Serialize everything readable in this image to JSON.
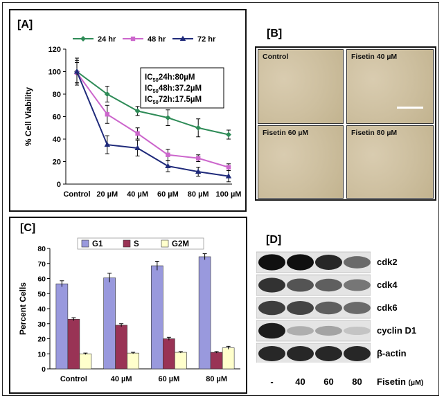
{
  "panel_labels": {
    "a": "[A]",
    "b": "[B]",
    "c": "[C]",
    "d": "[D]"
  },
  "chart_data": [
    {
      "type": "line",
      "title": "",
      "ylabel": "% Cell Viability",
      "xlabel": "",
      "categories": [
        "Control",
        "20 µM",
        "40 µM",
        "60 µM",
        "80 µM",
        "100 µM"
      ],
      "ylim": [
        0,
        120
      ],
      "yticks": [
        "0",
        "20",
        "40",
        "60",
        "80",
        "100",
        "120"
      ],
      "legend_position": "top",
      "series": [
        {
          "name": "24 hr",
          "color": "#2e8b57",
          "marker": "diamond",
          "values": [
            100,
            80,
            65,
            59,
            50,
            44
          ],
          "errors": [
            10,
            7,
            4,
            7,
            8,
            4
          ]
        },
        {
          "name": "48 hr",
          "color": "#cc66cc",
          "marker": "square",
          "values": [
            99,
            62,
            45,
            26,
            23,
            15
          ],
          "errors": [
            9,
            8,
            5,
            5,
            3,
            3
          ]
        },
        {
          "name": "72 hr",
          "color": "#1f2a7a",
          "marker": "triangle",
          "values": [
            100,
            35,
            32,
            16,
            11,
            7
          ],
          "errors": [
            12,
            8,
            7,
            5,
            4,
            5
          ]
        }
      ],
      "annotation_box": {
        "lines": [
          {
            "main": "IC",
            "sub": "50",
            "rest": "24h:80µM"
          },
          {
            "main": "IC",
            "sub": "50",
            "rest": "48h:37.2µM"
          },
          {
            "main": "IC",
            "sub": "50",
            "rest": "72h:17.5µM"
          }
        ]
      }
    },
    {
      "type": "bar",
      "title": "",
      "ylabel": "Percent Cells",
      "xlabel": "",
      "categories": [
        "Control",
        "40 µM",
        "60 µM",
        "80 µM"
      ],
      "ylim": [
        0,
        80
      ],
      "yticks": [
        "0",
        "10",
        "20",
        "30",
        "40",
        "50",
        "60",
        "70",
        "80"
      ],
      "legend_position": "top",
      "series": [
        {
          "name": "G1",
          "color": "#9999dd",
          "values": [
            56.5,
            60.5,
            68.5,
            74.5
          ],
          "errors": [
            2,
            3,
            3,
            2
          ]
        },
        {
          "name": "S",
          "color": "#993355",
          "values": [
            33,
            29,
            20,
            11
          ],
          "errors": [
            1,
            1,
            1,
            0.5
          ]
        },
        {
          "name": "G2M",
          "color": "#ffffcc",
          "values": [
            10,
            10.5,
            11,
            14
          ],
          "errors": [
            0.5,
            0.5,
            0.5,
            1
          ]
        }
      ]
    }
  ],
  "micrographs": [
    {
      "label": "Control"
    },
    {
      "label": "Fisetin 40 µM"
    },
    {
      "label": "Fisetin 60 µM"
    },
    {
      "label": "Fisetin 80 µM"
    }
  ],
  "western_blot": {
    "proteins": [
      "cdk2",
      "cdk4",
      "cdk6",
      "cyclin D1",
      "β-actin"
    ],
    "lanes": [
      "-",
      "40",
      "60",
      "80"
    ],
    "treatment_label": "Fisetin",
    "unit_label": "(µM)",
    "band_intensity": [
      [
        0.95,
        0.95,
        0.85,
        0.55
      ],
      [
        0.8,
        0.65,
        0.6,
        0.5
      ],
      [
        0.75,
        0.72,
        0.6,
        0.55
      ],
      [
        0.9,
        0.25,
        0.3,
        0.15
      ],
      [
        0.85,
        0.85,
        0.85,
        0.85
      ]
    ]
  }
}
